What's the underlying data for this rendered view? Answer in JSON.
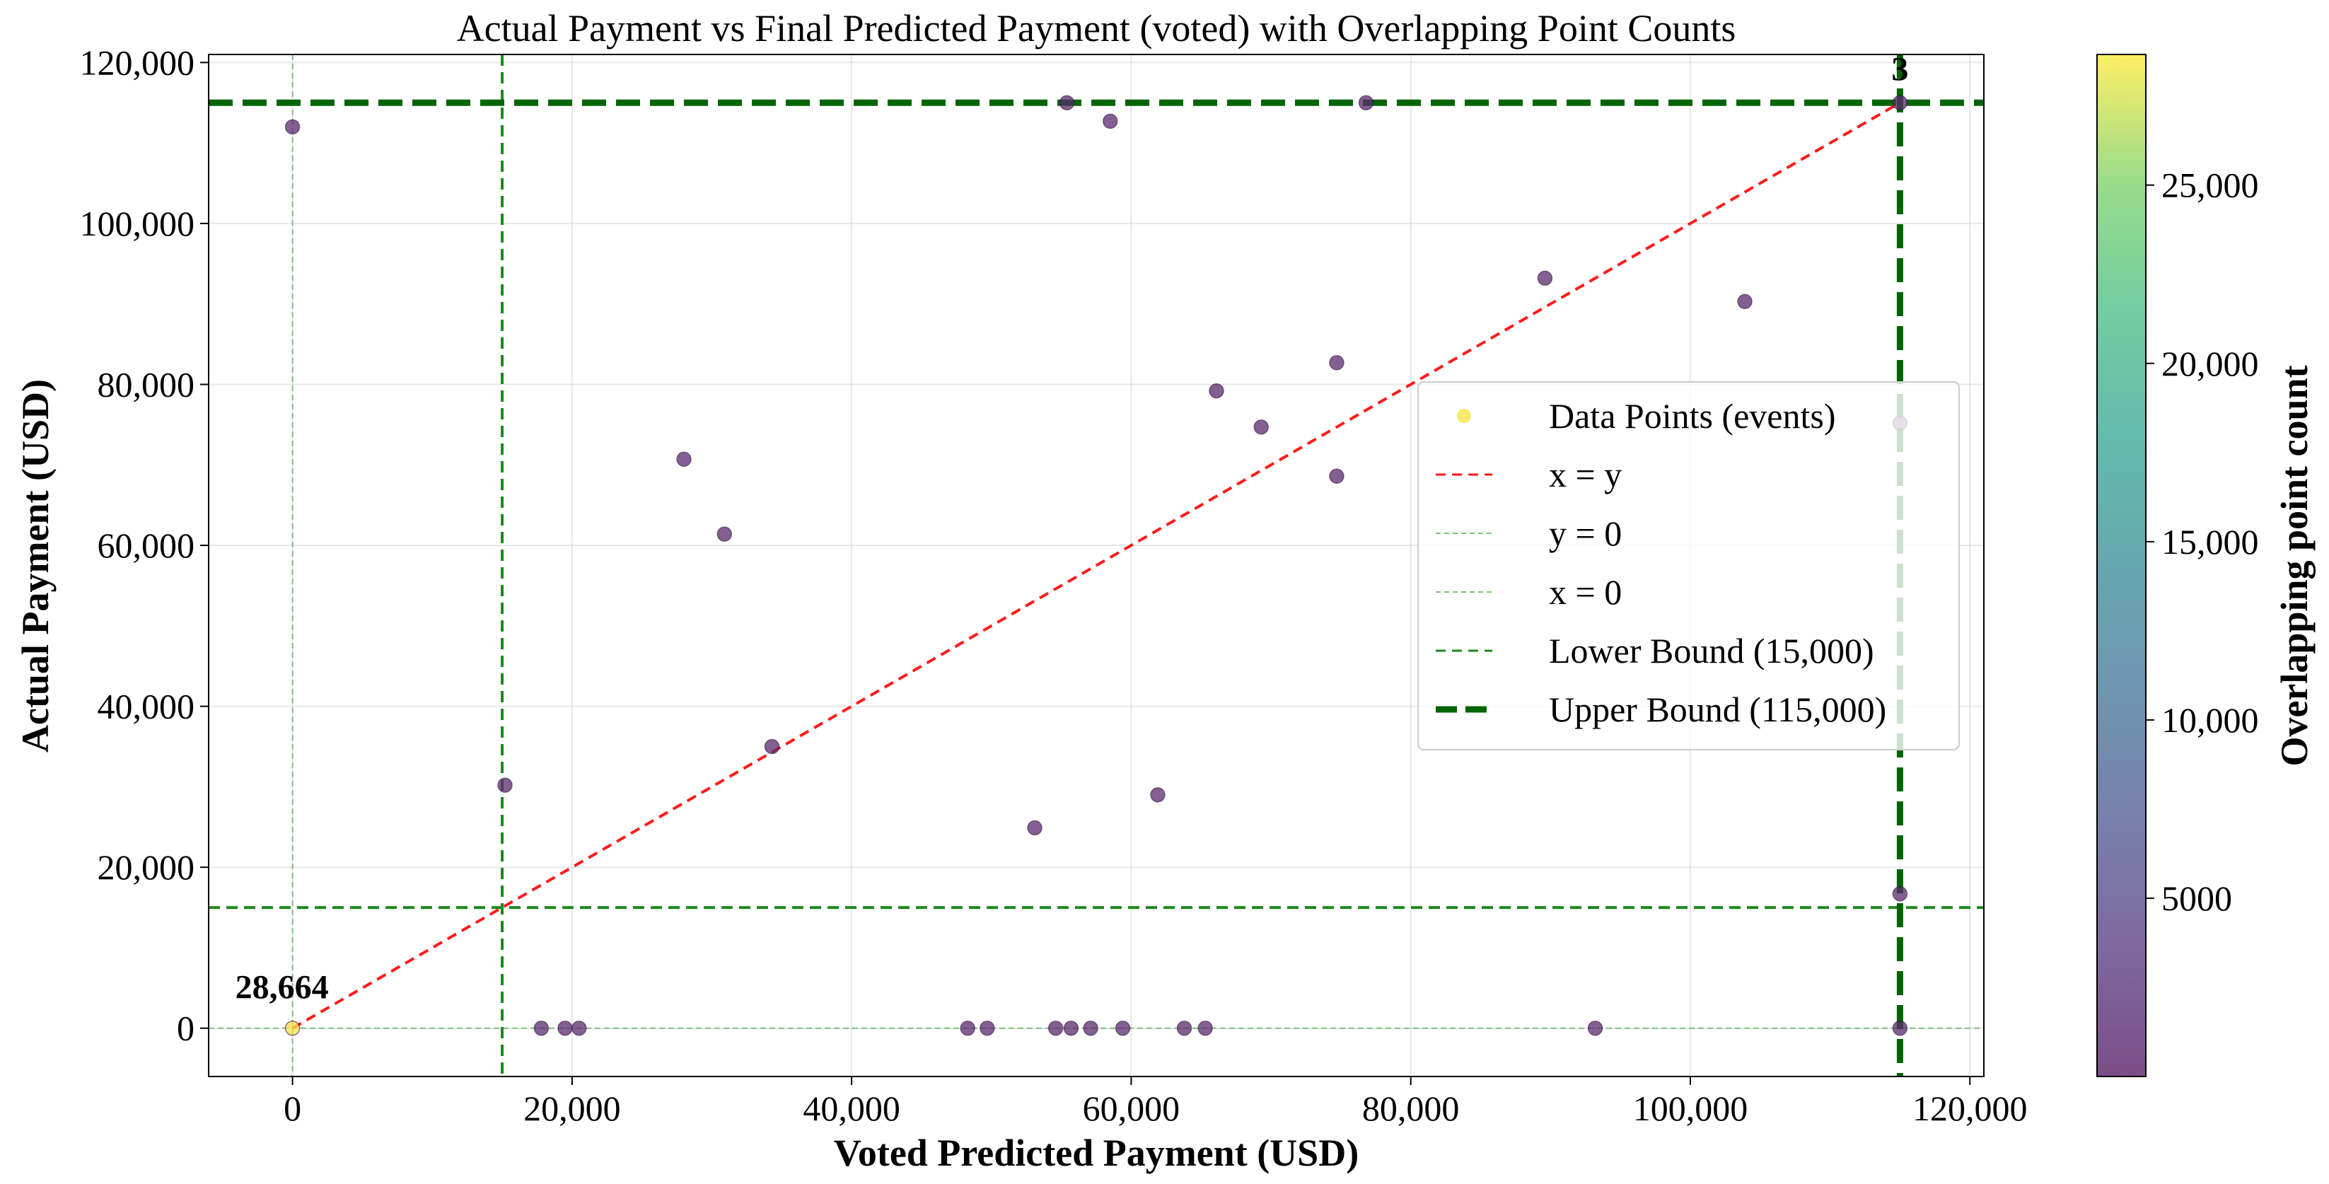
{
  "chart_data": {
    "type": "scatter",
    "title": "Actual Payment vs Final Predicted Payment (voted) with Overlapping Point Counts",
    "xlabel": "Voted Predicted Payment (USD)",
    "ylabel": "Actual Payment (USD)",
    "xlim": [
      -6000,
      121000
    ],
    "ylim": [
      -6000,
      121000
    ],
    "x_ticks": [
      0,
      20000,
      40000,
      60000,
      80000,
      100000,
      120000
    ],
    "x_tick_labels": [
      "0",
      "20,000",
      "40,000",
      "60,000",
      "80,000",
      "100,000",
      "120,000"
    ],
    "y_ticks": [
      0,
      20000,
      40000,
      60000,
      80000,
      100000,
      120000
    ],
    "y_tick_labels": [
      "0",
      "20,000",
      "40,000",
      "60,000",
      "80,000",
      "100,000",
      "120,000"
    ],
    "grid": true,
    "legend_position": "center-right",
    "legend": [
      {
        "label": "Data Points (events)",
        "kind": "marker",
        "color": "#f2e34a"
      },
      {
        "label": "x = y",
        "kind": "line",
        "color": "#ff1a1a",
        "style": "dashed"
      },
      {
        "label": "y = 0",
        "kind": "line",
        "color": "#7fbf7f",
        "style": "dashed-thin"
      },
      {
        "label": "x = 0",
        "kind": "line",
        "color": "#7fbf7f",
        "style": "dashed-thin"
      },
      {
        "label": "Lower Bound (15,000)",
        "kind": "line",
        "color": "#1a8a1a",
        "style": "dashed"
      },
      {
        "label": "Upper Bound (115,000)",
        "kind": "line",
        "color": "#006400",
        "style": "dashed-thick"
      }
    ],
    "reference_lines": {
      "diagonal": {
        "from": [
          0,
          0
        ],
        "to": [
          115000,
          115000
        ]
      },
      "zero": 0,
      "lower_bound": 15000,
      "upper_bound": 115000
    },
    "annotations": [
      {
        "text": "28,664",
        "x": 0,
        "y": 0
      },
      {
        "text": "3",
        "x": 115000,
        "y": 115000
      }
    ],
    "colorbar": {
      "label": "Overlapping point count",
      "min": 1,
      "max": 28664,
      "ticks": [
        5000,
        10000,
        15000,
        20000,
        25000
      ],
      "tick_labels": [
        "5000",
        "10,000",
        "15,000",
        "20,000",
        "25,000"
      ],
      "colormap": "viridis"
    },
    "points": [
      {
        "x": 0,
        "y": 0,
        "count": 28664
      },
      {
        "x": 0,
        "y": 112000,
        "count": 1
      },
      {
        "x": 15200,
        "y": 30200,
        "count": 1
      },
      {
        "x": 17800,
        "y": 0,
        "count": 1
      },
      {
        "x": 19500,
        "y": 0,
        "count": 1
      },
      {
        "x": 20500,
        "y": 0,
        "count": 1
      },
      {
        "x": 28000,
        "y": 70700,
        "count": 1
      },
      {
        "x": 30900,
        "y": 61400,
        "count": 1
      },
      {
        "x": 34300,
        "y": 35000,
        "count": 1
      },
      {
        "x": 48300,
        "y": 0,
        "count": 1
      },
      {
        "x": 49700,
        "y": 0,
        "count": 1
      },
      {
        "x": 53100,
        "y": 24900,
        "count": 1
      },
      {
        "x": 54600,
        "y": 0,
        "count": 1
      },
      {
        "x": 55400,
        "y": 115000,
        "count": 1
      },
      {
        "x": 55700,
        "y": 0,
        "count": 1
      },
      {
        "x": 57100,
        "y": 0,
        "count": 1
      },
      {
        "x": 58500,
        "y": 112700,
        "count": 1
      },
      {
        "x": 59400,
        "y": 0,
        "count": 1
      },
      {
        "x": 61900,
        "y": 29000,
        "count": 1
      },
      {
        "x": 63800,
        "y": 0,
        "count": 1
      },
      {
        "x": 65300,
        "y": 0,
        "count": 1
      },
      {
        "x": 66100,
        "y": 79200,
        "count": 1
      },
      {
        "x": 69300,
        "y": 74700,
        "count": 1
      },
      {
        "x": 74700,
        "y": 82700,
        "count": 1
      },
      {
        "x": 74700,
        "y": 68600,
        "count": 1
      },
      {
        "x": 76800,
        "y": 115000,
        "count": 1
      },
      {
        "x": 89600,
        "y": 93200,
        "count": 1
      },
      {
        "x": 93200,
        "y": 0,
        "count": 1
      },
      {
        "x": 103900,
        "y": 90300,
        "count": 1
      },
      {
        "x": 115000,
        "y": 115000,
        "count": 3
      },
      {
        "x": 115000,
        "y": 75200,
        "count": 1
      },
      {
        "x": 115000,
        "y": 16700,
        "count": 1
      },
      {
        "x": 115000,
        "y": 0,
        "count": 1
      }
    ]
  }
}
